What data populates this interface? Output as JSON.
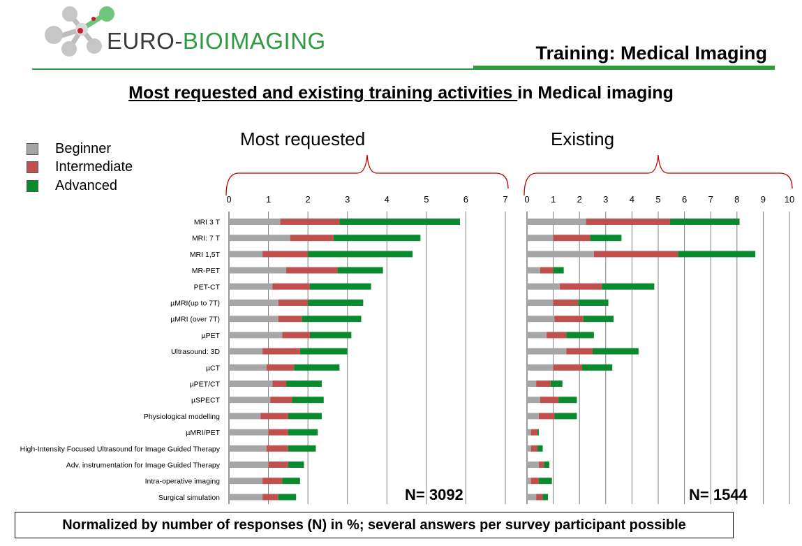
{
  "logo": {
    "part1": "EURO-",
    "part2": "BIOIMAGING"
  },
  "slide_title": "Training: Medical Imaging",
  "subtitle": {
    "underlined": "Most requested and existing training activities ",
    "rest": "in Medical imaging"
  },
  "footnote": "Normalized by number of responses  (N)  in %; several answers per survey participant possible",
  "colors": {
    "brand_green": "#2f9a3f",
    "beginner": "#a6a6a6",
    "intermediate": "#c0504d",
    "advanced": "#0a8a2e",
    "grid": "#7f7f7f"
  },
  "chart_data": [
    {
      "type": "bar",
      "orientation": "horizontal",
      "stacked": true,
      "title": "Most requested",
      "n_label": "N= 3092",
      "xlim": [
        0,
        7
      ],
      "xticks": [
        "0",
        "1",
        "2",
        "3",
        "4",
        "5",
        "6",
        "7"
      ],
      "grid": true,
      "legend": "left",
      "categories": [
        "MRI 3 T",
        "MRI: 7 T",
        "MRI 1,5T",
        "MR-PET",
        "PET-CT",
        "µMRI(up to 7T)",
        "µMRI (over 7T)",
        "µPET",
        "Ultrasound: 3D",
        "µCT",
        "µPET/CT",
        "µSPECT",
        "Physiological modelling",
        "µMRI/PET",
        "High-Intensity Focused Ultrasound for Image Guided Therapy",
        "Adv. instrumentation for Image Guided Therapy",
        "Intra-operative imaging",
        "Surgical simulation"
      ],
      "series": [
        {
          "name": "Beginner",
          "values": [
            1.3,
            1.55,
            0.85,
            1.45,
            1.1,
            1.25,
            1.25,
            1.35,
            0.85,
            0.95,
            1.1,
            1.05,
            0.8,
            1.0,
            0.95,
            1.0,
            0.85,
            0.85
          ]
        },
        {
          "name": "Intermediate",
          "values": [
            1.5,
            1.1,
            1.15,
            1.3,
            0.95,
            0.75,
            0.6,
            0.7,
            0.95,
            0.7,
            0.35,
            0.55,
            0.7,
            0.5,
            0.55,
            0.5,
            0.5,
            0.4
          ]
        },
        {
          "name": "Advanced",
          "values": [
            3.05,
            2.2,
            2.65,
            1.15,
            1.55,
            1.4,
            1.5,
            1.05,
            1.2,
            1.15,
            0.9,
            0.8,
            0.85,
            0.75,
            0.7,
            0.4,
            0.45,
            0.45
          ]
        }
      ]
    },
    {
      "type": "bar",
      "orientation": "horizontal",
      "stacked": true,
      "title": "Existing",
      "n_label": "N= 1544",
      "xlim": [
        0,
        10
      ],
      "xticks": [
        "0",
        "1",
        "2",
        "3",
        "4",
        "5",
        "6",
        "7",
        "8",
        "9",
        "10"
      ],
      "grid": true,
      "categories": [
        "MRI 3 T",
        "MRI: 7 T",
        "MRI 1,5T",
        "MR-PET",
        "PET-CT",
        "µMRI(up to 7T)",
        "µMRI (over 7T)",
        "µPET",
        "Ultrasound: 3D",
        "µCT",
        "µPET/CT",
        "µSPECT",
        "Physiological modelling",
        "µMRI/PET",
        "High-Intensity Focused Ultrasound for Image Guided Therapy",
        "Adv. instrumentation for Image Guided Therapy",
        "Intra-operative imaging",
        "Surgical simulation"
      ],
      "series": [
        {
          "name": "Beginner",
          "values": [
            2.25,
            1.0,
            2.55,
            0.5,
            1.25,
            1.0,
            1.05,
            0.75,
            1.5,
            1.0,
            0.35,
            0.5,
            0.45,
            0.15,
            0.15,
            0.45,
            0.15,
            0.35
          ]
        },
        {
          "name": "Intermediate",
          "values": [
            3.2,
            1.4,
            3.2,
            0.5,
            1.6,
            0.95,
            1.1,
            0.75,
            1.0,
            1.1,
            0.55,
            0.7,
            0.6,
            0.25,
            0.25,
            0.2,
            0.3,
            0.25
          ]
        },
        {
          "name": "Advanced",
          "values": [
            2.65,
            1.2,
            2.95,
            0.4,
            2.0,
            1.15,
            1.15,
            1.05,
            1.75,
            1.15,
            0.45,
            0.7,
            0.85,
            0.05,
            0.2,
            0.2,
            0.5,
            0.2
          ]
        }
      ]
    }
  ]
}
